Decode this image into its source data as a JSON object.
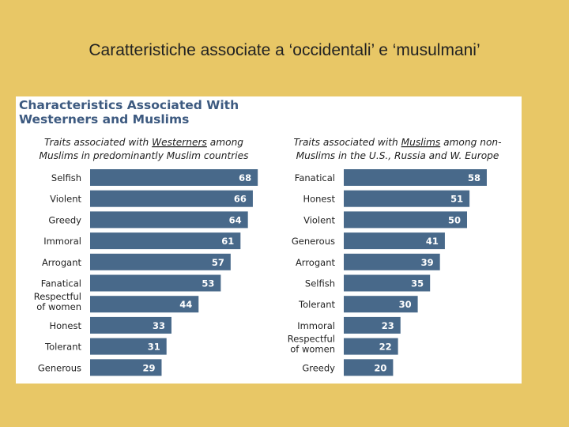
{
  "slide_title": "Caratteristiche associate a ‘occidentali’ e ‘musulmani’",
  "chart_title_line1": "Characteristics Associated With",
  "chart_title_line2": "Westerners and Muslims",
  "colors": {
    "background": "#e8c766",
    "bar": "#48698a",
    "title": "#3d5a80"
  },
  "chart_data": [
    {
      "type": "bar",
      "orientation": "horizontal",
      "title_parts": [
        "Traits associated with ",
        "Westerners",
        " among"
      ],
      "title_line2": "Muslims in predominantly Muslim countries",
      "categories": [
        [
          "Selfish"
        ],
        [
          "Violent"
        ],
        [
          "Greedy"
        ],
        [
          "Immoral"
        ],
        [
          "Arrogant"
        ],
        [
          "Fanatical"
        ],
        [
          "Respectful",
          "of women"
        ],
        [
          "Honest"
        ],
        [
          "Tolerant"
        ],
        [
          "Generous"
        ]
      ],
      "values": [
        68,
        66,
        64,
        61,
        57,
        53,
        44,
        33,
        31,
        29
      ],
      "xlim": [
        0,
        100
      ]
    },
    {
      "type": "bar",
      "orientation": "horizontal",
      "title_parts": [
        "Traits associated with ",
        "Muslims",
        " among non-"
      ],
      "title_line2": "Muslims in the U.S., Russia and W. Europe",
      "categories": [
        [
          "Fanatical"
        ],
        [
          "Honest"
        ],
        [
          "Violent"
        ],
        [
          "Generous"
        ],
        [
          "Arrogant"
        ],
        [
          "Selfish"
        ],
        [
          "Tolerant"
        ],
        [
          "Immoral"
        ],
        [
          "Respectful",
          "of women"
        ],
        [
          "Greedy"
        ]
      ],
      "values": [
        58,
        51,
        50,
        41,
        39,
        35,
        30,
        23,
        22,
        20
      ],
      "xlim": [
        0,
        100
      ]
    }
  ]
}
